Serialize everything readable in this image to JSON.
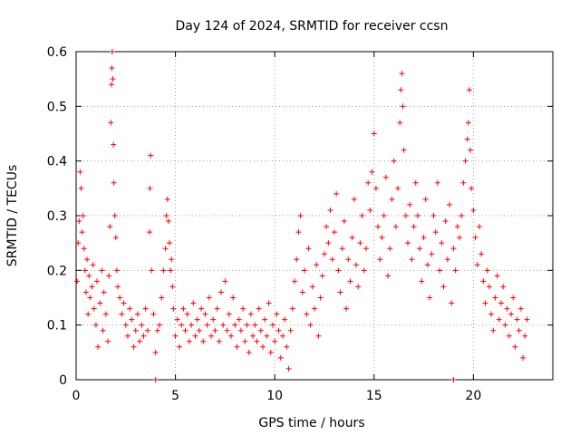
{
  "chart_data": {
    "type": "scatter",
    "title": "Day 124 of 2024, SRMTID for receiver ccsn",
    "xlabel": "GPS time / hours",
    "ylabel": "SRMTID / TECUs",
    "xlim": [
      0,
      24
    ],
    "ylim": [
      0,
      0.6
    ],
    "xticks": [
      0,
      5,
      10,
      15,
      20
    ],
    "yticks": [
      0,
      0.1,
      0.2,
      0.3,
      0.4,
      0.5,
      0.6
    ],
    "xtick_labels": [
      "0",
      "5",
      "10",
      "15",
      "20"
    ],
    "ytick_labels": [
      "0",
      "0.1",
      "0.2",
      "0.3",
      "0.4",
      "0.5",
      "0.6"
    ],
    "grid": true,
    "marker": "+",
    "color": "#ff0000",
    "series": [
      {
        "name": "SRMTID",
        "points": [
          [
            0.05,
            0.18
          ],
          [
            0.1,
            0.25
          ],
          [
            0.15,
            0.29
          ],
          [
            0.2,
            0.38
          ],
          [
            0.25,
            0.35
          ],
          [
            0.3,
            0.27
          ],
          [
            0.35,
            0.3
          ],
          [
            0.4,
            0.24
          ],
          [
            0.45,
            0.2
          ],
          [
            0.5,
            0.16
          ],
          [
            0.55,
            0.22
          ],
          [
            0.6,
            0.12
          ],
          [
            0.65,
            0.19
          ],
          [
            0.7,
            0.15
          ],
          [
            0.8,
            0.17
          ],
          [
            0.85,
            0.21
          ],
          [
            0.9,
            0.13
          ],
          [
            1.0,
            0.1
          ],
          [
            1.05,
            0.18
          ],
          [
            1.1,
            0.06
          ],
          [
            1.2,
            0.14
          ],
          [
            1.3,
            0.2
          ],
          [
            1.35,
            0.09
          ],
          [
            1.4,
            0.16
          ],
          [
            1.5,
            0.12
          ],
          [
            1.6,
            0.07
          ],
          [
            1.65,
            0.19
          ],
          [
            1.7,
            0.28
          ],
          [
            1.75,
            0.47
          ],
          [
            1.78,
            0.54
          ],
          [
            1.8,
            0.57
          ],
          [
            1.82,
            0.6
          ],
          [
            1.85,
            0.55
          ],
          [
            1.88,
            0.43
          ],
          [
            1.9,
            0.36
          ],
          [
            1.95,
            0.3
          ],
          [
            2.0,
            0.26
          ],
          [
            2.05,
            0.2
          ],
          [
            2.1,
            0.17
          ],
          [
            2.2,
            0.15
          ],
          [
            2.3,
            0.12
          ],
          [
            2.4,
            0.14
          ],
          [
            2.5,
            0.1
          ],
          [
            2.6,
            0.08
          ],
          [
            2.7,
            0.13
          ],
          [
            2.8,
            0.11
          ],
          [
            2.9,
            0.06
          ],
          [
            3.0,
            0.09
          ],
          [
            3.1,
            0.12
          ],
          [
            3.2,
            0.07
          ],
          [
            3.3,
            0.1
          ],
          [
            3.4,
            0.08
          ],
          [
            3.5,
            0.13
          ],
          [
            3.6,
            0.09
          ],
          [
            3.7,
            0.27
          ],
          [
            3.72,
            0.35
          ],
          [
            3.75,
            0.41
          ],
          [
            3.8,
            0.2
          ],
          [
            3.9,
            0.12
          ],
          [
            4.0,
            0.05
          ],
          [
            4.1,
            0.09
          ],
          [
            4.2,
            0.1
          ],
          [
            4.3,
            0.15
          ],
          [
            4.4,
            0.2
          ],
          [
            4.5,
            0.24
          ],
          [
            4.55,
            0.3
          ],
          [
            4.6,
            0.33
          ],
          [
            4.65,
            0.29
          ],
          [
            4.7,
            0.25
          ],
          [
            4.75,
            0.2
          ],
          [
            4.8,
            0.22
          ],
          [
            4.85,
            0.17
          ],
          [
            4.9,
            0.13
          ],
          [
            5.0,
            0.08
          ],
          [
            5.1,
            0.11
          ],
          [
            5.2,
            0.06
          ],
          [
            5.3,
            0.1
          ],
          [
            5.4,
            0.13
          ],
          [
            5.5,
            0.09
          ],
          [
            5.6,
            0.12
          ],
          [
            5.7,
            0.07
          ],
          [
            5.8,
            0.1
          ],
          [
            5.9,
            0.14
          ],
          [
            6.0,
            0.08
          ],
          [
            6.1,
            0.11
          ],
          [
            6.2,
            0.09
          ],
          [
            6.3,
            0.13
          ],
          [
            6.4,
            0.07
          ],
          [
            6.5,
            0.12
          ],
          [
            6.6,
            0.1
          ],
          [
            6.7,
            0.15
          ],
          [
            6.8,
            0.08
          ],
          [
            6.9,
            0.11
          ],
          [
            7.0,
            0.09
          ],
          [
            7.1,
            0.13
          ],
          [
            7.2,
            0.07
          ],
          [
            7.3,
            0.16
          ],
          [
            7.4,
            0.1
          ],
          [
            7.5,
            0.18
          ],
          [
            7.6,
            0.09
          ],
          [
            7.7,
            0.12
          ],
          [
            7.8,
            0.08
          ],
          [
            7.9,
            0.15
          ],
          [
            8.0,
            0.1
          ],
          [
            8.1,
            0.06
          ],
          [
            8.2,
            0.11
          ],
          [
            8.3,
            0.09
          ],
          [
            8.4,
            0.13
          ],
          [
            8.5,
            0.07
          ],
          [
            8.6,
            0.1
          ],
          [
            8.7,
            0.05
          ],
          [
            8.8,
            0.12
          ],
          [
            8.9,
            0.08
          ],
          [
            9.0,
            0.1
          ],
          [
            9.1,
            0.07
          ],
          [
            9.2,
            0.13
          ],
          [
            9.3,
            0.09
          ],
          [
            9.4,
            0.06
          ],
          [
            9.5,
            0.11
          ],
          [
            9.6,
            0.08
          ],
          [
            9.7,
            0.14
          ],
          [
            9.8,
            0.05
          ],
          [
            9.9,
            0.1
          ],
          [
            10.0,
            0.07
          ],
          [
            10.1,
            0.12
          ],
          [
            10.2,
            0.09
          ],
          [
            10.3,
            0.04
          ],
          [
            10.4,
            0.08
          ],
          [
            10.5,
            0.11
          ],
          [
            10.6,
            0.06
          ],
          [
            10.7,
            0.02
          ],
          [
            10.8,
            0.09
          ],
          [
            10.9,
            0.13
          ],
          [
            11.0,
            0.18
          ],
          [
            11.1,
            0.22
          ],
          [
            11.2,
            0.27
          ],
          [
            11.3,
            0.3
          ],
          [
            11.4,
            0.16
          ],
          [
            11.5,
            0.2
          ],
          [
            11.6,
            0.12
          ],
          [
            11.7,
            0.24
          ],
          [
            11.8,
            0.1
          ],
          [
            11.9,
            0.17
          ],
          [
            12.0,
            0.13
          ],
          [
            12.1,
            0.21
          ],
          [
            12.2,
            0.08
          ],
          [
            12.3,
            0.15
          ],
          [
            12.4,
            0.19
          ],
          [
            12.5,
            0.23
          ],
          [
            12.6,
            0.28
          ],
          [
            12.7,
            0.25
          ],
          [
            12.8,
            0.31
          ],
          [
            12.9,
            0.22
          ],
          [
            13.0,
            0.27
          ],
          [
            13.1,
            0.34
          ],
          [
            13.2,
            0.2
          ],
          [
            13.3,
            0.16
          ],
          [
            13.4,
            0.24
          ],
          [
            13.5,
            0.29
          ],
          [
            13.6,
            0.13
          ],
          [
            13.7,
            0.22
          ],
          [
            13.8,
            0.18
          ],
          [
            13.9,
            0.26
          ],
          [
            14.0,
            0.33
          ],
          [
            14.1,
            0.21
          ],
          [
            14.2,
            0.17
          ],
          [
            14.3,
            0.25
          ],
          [
            14.4,
            0.3
          ],
          [
            14.5,
            0.2
          ],
          [
            14.6,
            0.24
          ],
          [
            14.7,
            0.36
          ],
          [
            14.8,
            0.31
          ],
          [
            14.9,
            0.38
          ],
          [
            15.0,
            0.45
          ],
          [
            15.1,
            0.35
          ],
          [
            15.2,
            0.28
          ],
          [
            15.3,
            0.22
          ],
          [
            15.4,
            0.26
          ],
          [
            15.5,
            0.3
          ],
          [
            15.6,
            0.37
          ],
          [
            15.7,
            0.19
          ],
          [
            15.8,
            0.24
          ],
          [
            15.9,
            0.33
          ],
          [
            16.0,
            0.4
          ],
          [
            16.1,
            0.28
          ],
          [
            16.2,
            0.35
          ],
          [
            16.3,
            0.47
          ],
          [
            16.35,
            0.53
          ],
          [
            16.4,
            0.56
          ],
          [
            16.45,
            0.5
          ],
          [
            16.5,
            0.42
          ],
          [
            16.6,
            0.3
          ],
          [
            16.7,
            0.25
          ],
          [
            16.8,
            0.32
          ],
          [
            16.9,
            0.22
          ],
          [
            17.0,
            0.28
          ],
          [
            17.1,
            0.36
          ],
          [
            17.2,
            0.3
          ],
          [
            17.3,
            0.24
          ],
          [
            17.4,
            0.18
          ],
          [
            17.5,
            0.26
          ],
          [
            17.6,
            0.33
          ],
          [
            17.7,
            0.21
          ],
          [
            17.8,
            0.15
          ],
          [
            17.9,
            0.23
          ],
          [
            18.0,
            0.3
          ],
          [
            18.1,
            0.27
          ],
          [
            18.2,
            0.36
          ],
          [
            18.3,
            0.2
          ],
          [
            18.4,
            0.25
          ],
          [
            18.5,
            0.17
          ],
          [
            18.6,
            0.29
          ],
          [
            18.7,
            0.22
          ],
          [
            18.8,
            0.32
          ],
          [
            18.9,
            0.14
          ],
          [
            19.0,
            0.24
          ],
          [
            19.1,
            0.2
          ],
          [
            19.2,
            0.28
          ],
          [
            19.3,
            0.26
          ],
          [
            19.4,
            0.3
          ],
          [
            19.5,
            0.36
          ],
          [
            19.6,
            0.4
          ],
          [
            19.7,
            0.44
          ],
          [
            19.75,
            0.47
          ],
          [
            19.8,
            0.53
          ],
          [
            19.85,
            0.42
          ],
          [
            19.9,
            0.35
          ],
          [
            20.0,
            0.31
          ],
          [
            20.1,
            0.26
          ],
          [
            20.2,
            0.21
          ],
          [
            20.3,
            0.28
          ],
          [
            20.4,
            0.23
          ],
          [
            20.5,
            0.18
          ],
          [
            20.6,
            0.14
          ],
          [
            20.7,
            0.2
          ],
          [
            20.8,
            0.17
          ],
          [
            20.9,
            0.12
          ],
          [
            21.0,
            0.09
          ],
          [
            21.1,
            0.15
          ],
          [
            21.2,
            0.19
          ],
          [
            21.3,
            0.11
          ],
          [
            21.4,
            0.14
          ],
          [
            21.5,
            0.17
          ],
          [
            21.6,
            0.1
          ],
          [
            21.7,
            0.13
          ],
          [
            21.8,
            0.08
          ],
          [
            21.9,
            0.12
          ],
          [
            22.0,
            0.15
          ],
          [
            22.1,
            0.06
          ],
          [
            22.2,
            0.11
          ],
          [
            22.3,
            0.09
          ],
          [
            22.4,
            0.13
          ],
          [
            22.5,
            0.04
          ],
          [
            22.6,
            0.08
          ],
          [
            22.7,
            0.11
          ],
          [
            4.0,
            0.0
          ],
          [
            19.0,
            0.0
          ]
        ]
      }
    ]
  }
}
